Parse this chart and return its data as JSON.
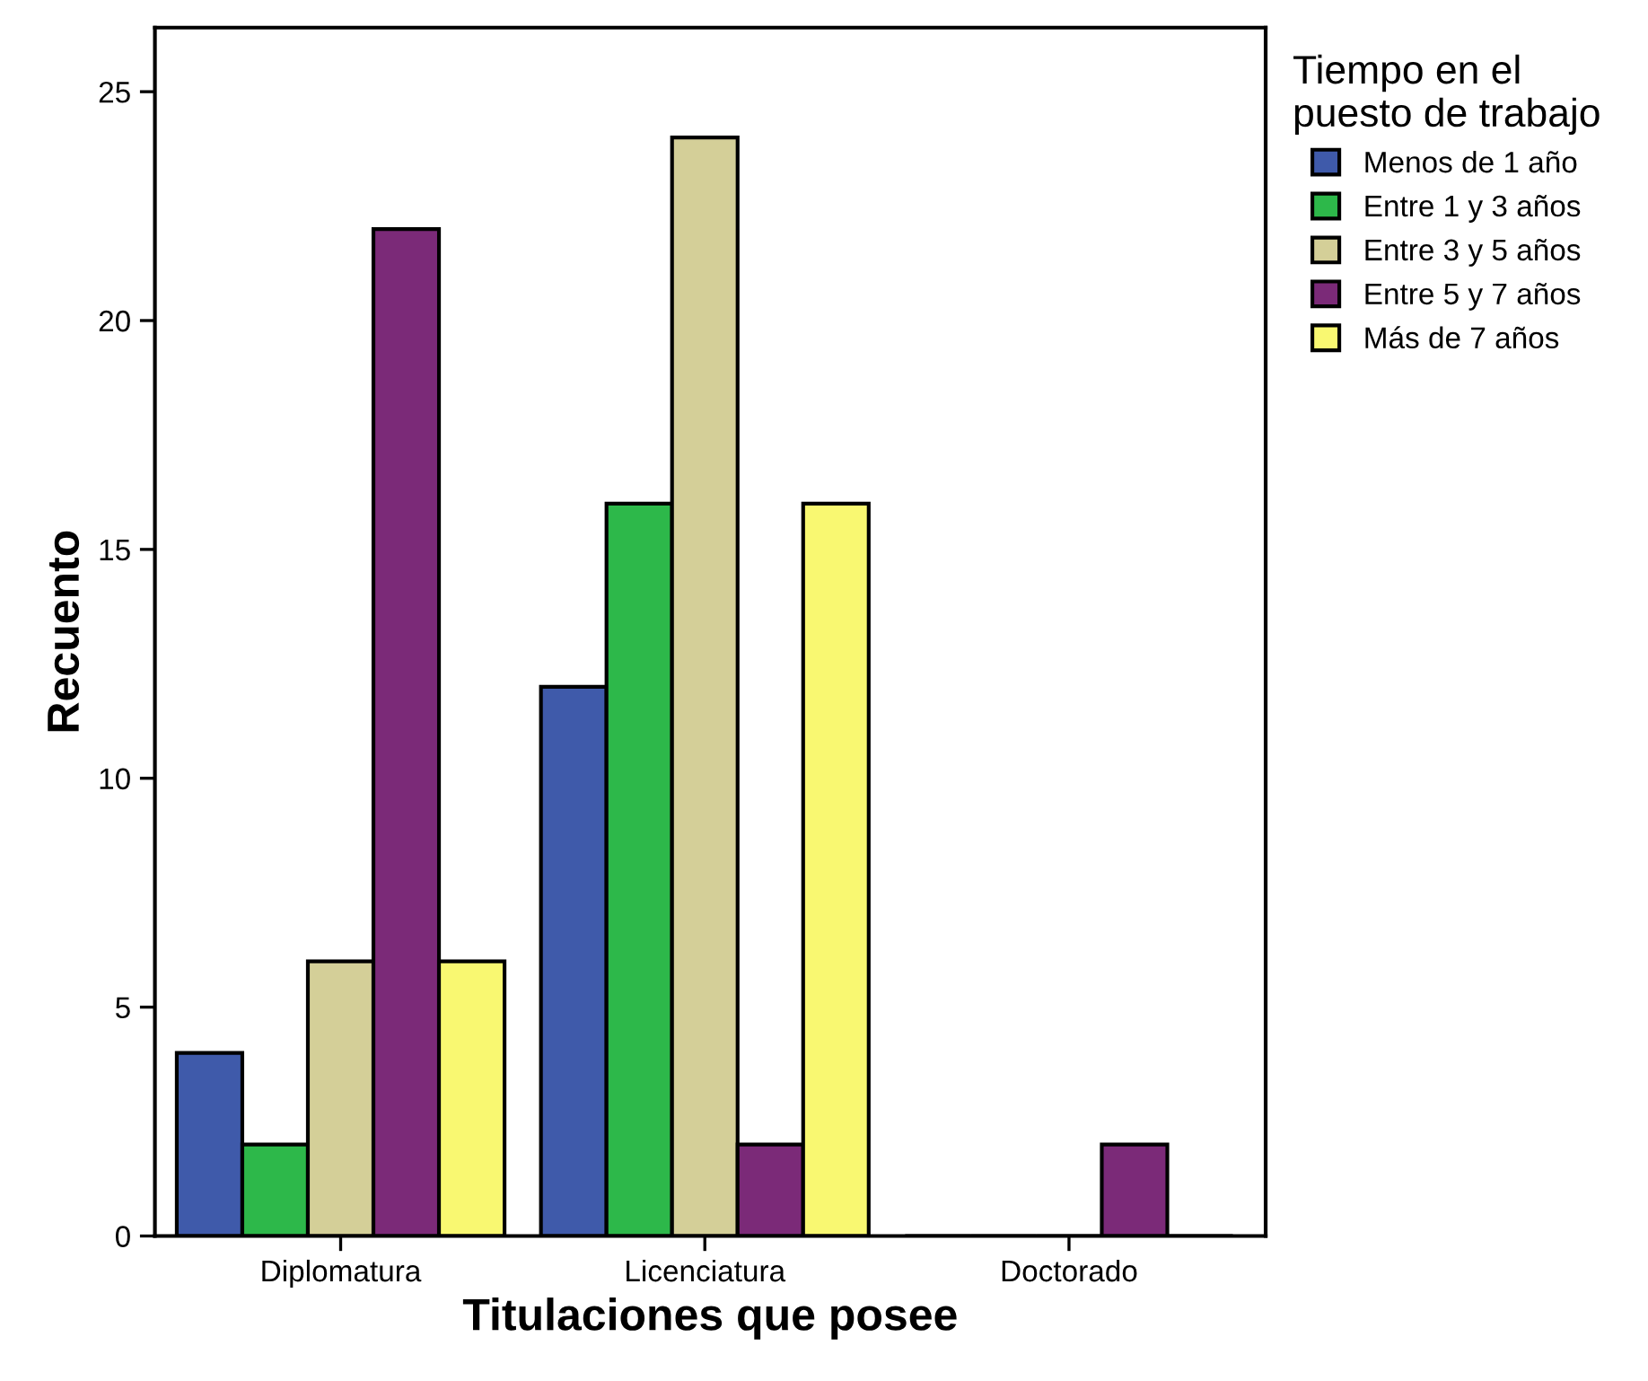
{
  "chart_data": {
    "type": "bar",
    "xlabel": "Titulaciones que posee",
    "ylabel": "Recuento",
    "legend_title": "Tiempo en el\npuesto de trabajo",
    "categories": [
      "Diplomatura",
      "Licenciatura",
      "Doctorado"
    ],
    "series": [
      {
        "name": "Menos de 1 año",
        "color": "#3f5aaa",
        "values": [
          4,
          12,
          0
        ]
      },
      {
        "name": "Entre 1 y 3 años",
        "color": "#2db84a",
        "values": [
          2,
          16,
          0
        ]
      },
      {
        "name": "Entre 3 y 5 años",
        "color": "#d4cf98",
        "values": [
          6,
          24,
          0
        ]
      },
      {
        "name": "Entre 5 y 7 años",
        "color": "#7b2a78",
        "values": [
          22,
          2,
          2
        ]
      },
      {
        "name": "Más de 7 años",
        "color": "#f9f871",
        "values": [
          6,
          16,
          0
        ]
      }
    ],
    "ylim": [
      0,
      26.4
    ],
    "yticks": [
      0,
      5,
      10,
      15,
      20,
      25
    ],
    "grid": false,
    "legend": "top right"
  }
}
